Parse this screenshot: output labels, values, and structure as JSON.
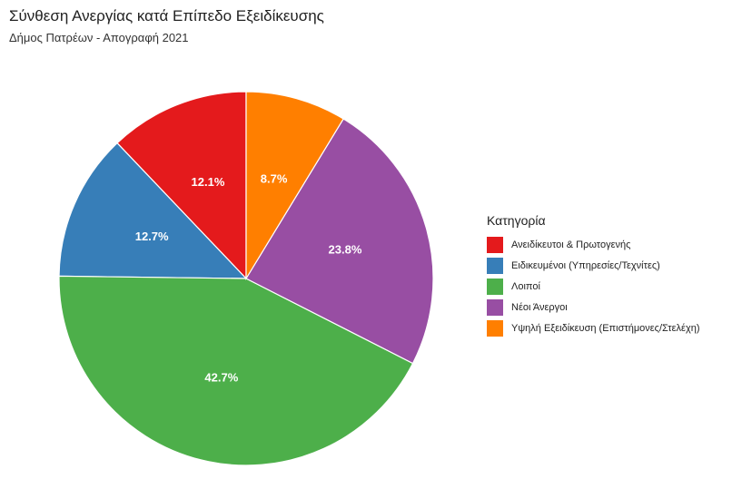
{
  "chart_data": {
    "type": "pie",
    "title": "Σύνθεση Ανεργίας κατά Επίπεδο Εξειδίκευσης",
    "subtitle": "Δήμος Πατρέων - Απογραφή 2021",
    "legend_title": "Κατηγορία",
    "legend_position": "right",
    "slices": [
      {
        "category": "Ανειδίκευτοι & Πρωτογενής",
        "value": 12.1,
        "label": "12.1%",
        "color": "#e41a1c"
      },
      {
        "category": "Ειδικευμένοι (Υπηρεσίες/Τεχνίτες)",
        "value": 12.7,
        "label": "12.7%",
        "color": "#377eb8"
      },
      {
        "category": "Λοιποί",
        "value": 42.7,
        "label": "42.7%",
        "color": "#4daf4a"
      },
      {
        "category": "Νέοι Άνεργοι",
        "value": 23.8,
        "label": "23.8%",
        "color": "#984ea3"
      },
      {
        "category": "Υψηλή Εξειδίκευση (Επιστήμονες/Στελέχη)",
        "value": 8.7,
        "label": "8.7%",
        "color": "#ff7f00"
      }
    ]
  }
}
